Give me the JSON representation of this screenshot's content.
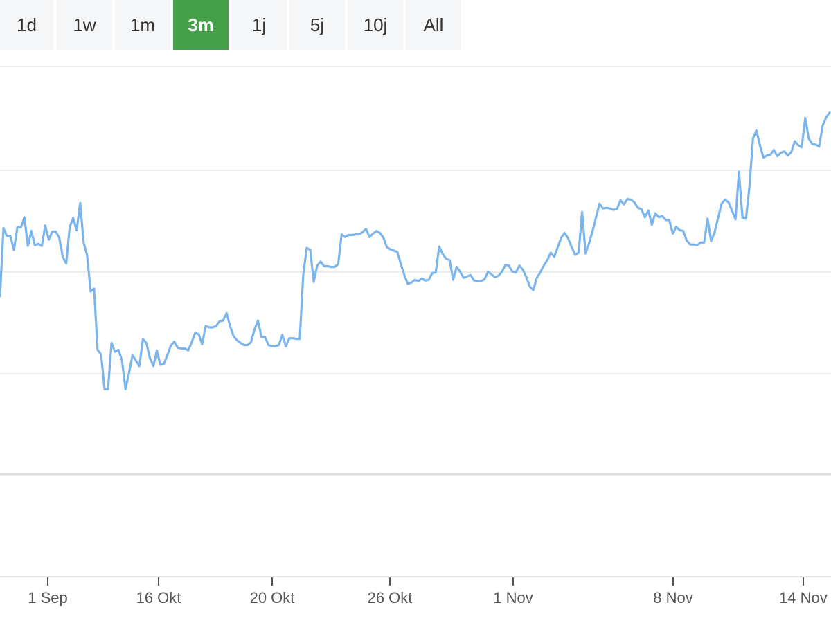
{
  "range_selector": {
    "buttons": [
      {
        "label": "1d",
        "active": false
      },
      {
        "label": "1w",
        "active": false
      },
      {
        "label": "1m",
        "active": false
      },
      {
        "label": "3m",
        "active": true
      },
      {
        "label": "1j",
        "active": false
      },
      {
        "label": "5j",
        "active": false
      },
      {
        "label": "10j",
        "active": false
      },
      {
        "label": "All",
        "active": false
      }
    ],
    "active_color": "#43a047"
  },
  "chart_data": {
    "type": "line",
    "line_color": "#7cb5ec",
    "grid": true,
    "xticks": [
      "1 Sep",
      "16 Okt",
      "20 Okt",
      "26 Okt",
      "1 Nov",
      "8 Nov",
      "14 Nov"
    ],
    "ylim": [
      0,
      600
    ],
    "series": [
      {
        "values": [
          262,
          362,
          350,
          350,
          330,
          364,
          363,
          378,
          336,
          358,
          337,
          339,
          336,
          366,
          345,
          357,
          357,
          348,
          320,
          310,
          364,
          377,
          359,
          399,
          341,
          322,
          269,
          273,
          183,
          176,
          125,
          125,
          193,
          180,
          183,
          167,
          125,
          148,
          175,
          167,
          159,
          199,
          193,
          171,
          159,
          182,
          161,
          162,
          175,
          189,
          195,
          186,
          185,
          185,
          182,
          194,
          208,
          206,
          191,
          218,
          216,
          216,
          218,
          225,
          226,
          237,
          218,
          203,
          197,
          193,
          190,
          190,
          194,
          213,
          226,
          202,
          202,
          190,
          188,
          188,
          190,
          205,
          188,
          200,
          200,
          199,
          199,
          294,
          333,
          330,
          283,
          307,
          313,
          306,
          306,
          305,
          305,
          309,
          353,
          349,
          352,
          352,
          353,
          353,
          356,
          361,
          349,
          354,
          358,
          355,
          348,
          334,
          331,
          329,
          327,
          309,
          293,
          280,
          282,
          286,
          284,
          288,
          285,
          286,
          296,
          297,
          335,
          324,
          317,
          315,
          286,
          305,
          298,
          289,
          291,
          293,
          285,
          284,
          284,
          287,
          298,
          294,
          290,
          292,
          298,
          308,
          307,
          298,
          297,
          307,
          301,
          290,
          276,
          271,
          289,
          297,
          307,
          315,
          326,
          320,
          334,
          348,
          355,
          347,
          334,
          323,
          326,
          386,
          325,
          340,
          358,
          378,
          398,
          391,
          392,
          391,
          389,
          390,
          403,
          397,
          405,
          404,
          400,
          392,
          390,
          378,
          388,
          367,
          384,
          378,
          380,
          374,
          374,
          354,
          364,
          359,
          358,
          344,
          338,
          338,
          337,
          341,
          341,
          376,
          343,
          356,
          377,
          398,
          404,
          400,
          388,
          375,
          445,
          377,
          376,
          423,
          494,
          506,
          484,
          466,
          469,
          470,
          477,
          468,
          473,
          475,
          469,
          474,
          490,
          484,
          481,
          524,
          494,
          486,
          485,
          482,
          513,
          525,
          532
        ]
      }
    ]
  }
}
